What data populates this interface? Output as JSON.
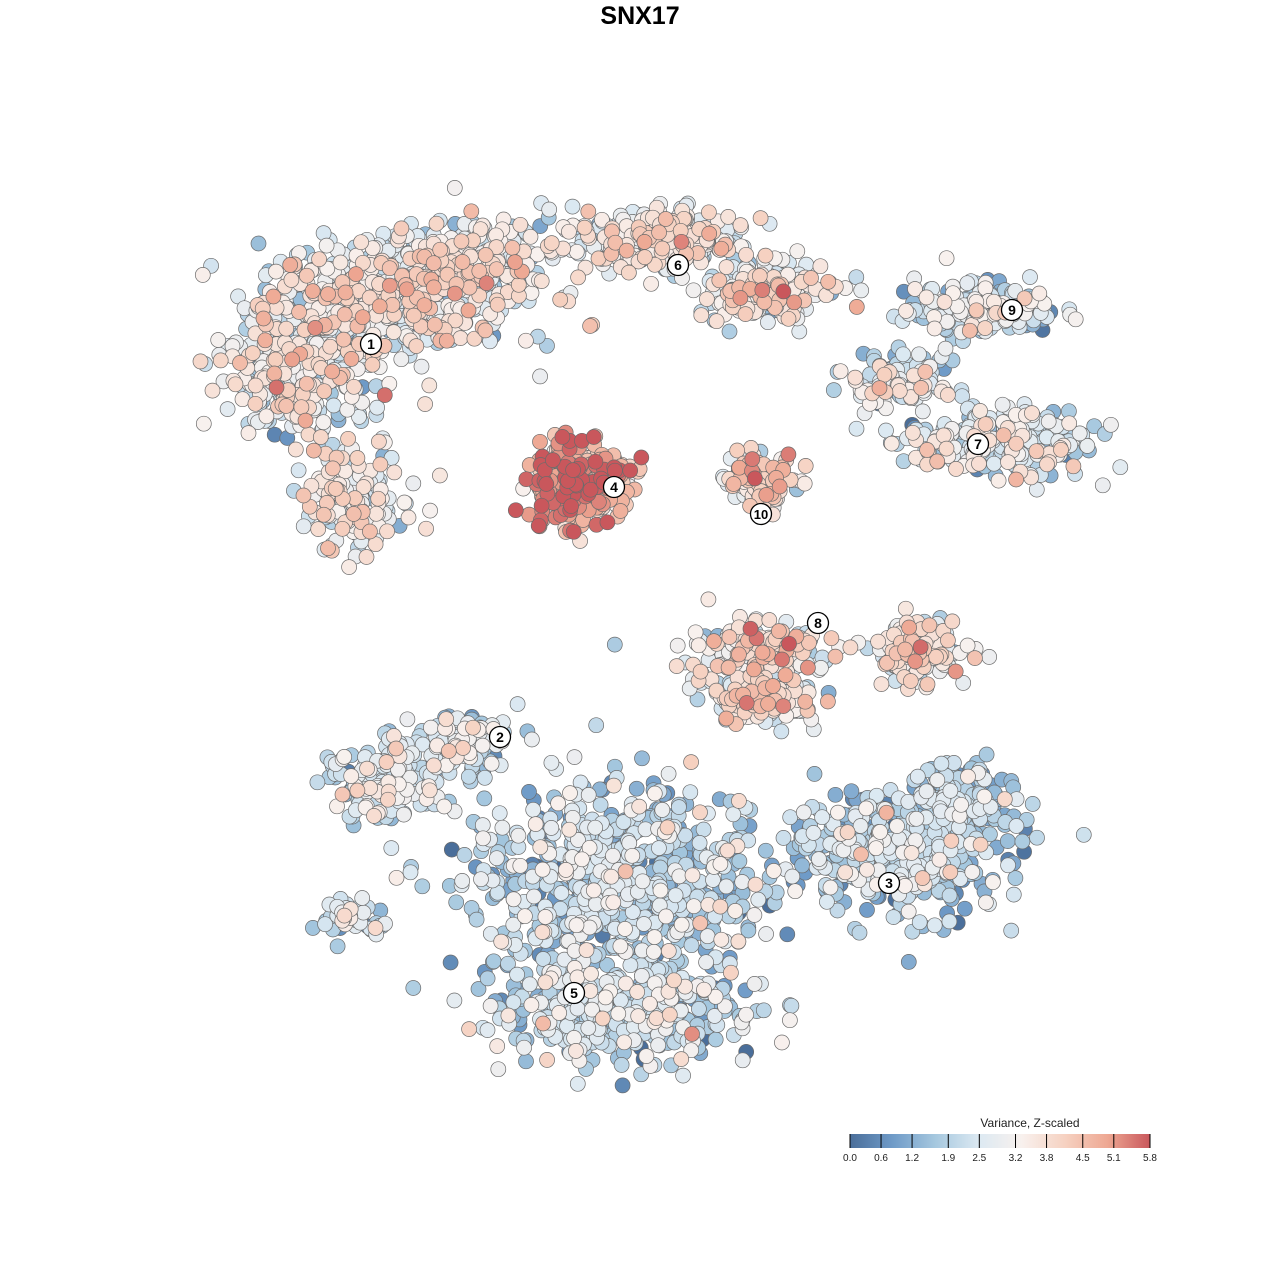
{
  "title": "SNX17",
  "legend": {
    "title": "Variance, Z-scaled",
    "ticks": [
      "0.0",
      "0.6",
      "1.2",
      "1.9",
      "2.5",
      "3.2",
      "3.8",
      "4.5",
      "5.1",
      "5.8"
    ],
    "min": 0.0,
    "max": 5.8,
    "colors": [
      "#4a6e9a",
      "#6f9bc8",
      "#a6c8df",
      "#dce9f2",
      "#f8f1ee",
      "#f6d2c2",
      "#eea893",
      "#c9575c"
    ]
  },
  "chart_data": {
    "type": "scatter",
    "title": "SNX17",
    "xlabel": "",
    "ylabel": "",
    "grid": false,
    "legend_position": "bottom-right",
    "color_scale": {
      "label": "Variance, Z-scaled",
      "range": [
        0.0,
        5.8
      ]
    },
    "clusters": [
      {
        "id": "1",
        "center_value": 3.0
      },
      {
        "id": "2",
        "center_value": 2.3
      },
      {
        "id": "3",
        "center_value": 1.7
      },
      {
        "id": "4",
        "center_value": 4.8
      },
      {
        "id": "5",
        "center_value": 2.0
      },
      {
        "id": "6",
        "center_value": 3.0
      },
      {
        "id": "7",
        "center_value": 2.4
      },
      {
        "id": "8",
        "center_value": 3.2
      },
      {
        "id": "9",
        "center_value": 2.3
      },
      {
        "id": "10",
        "center_value": 3.4
      }
    ]
  }
}
